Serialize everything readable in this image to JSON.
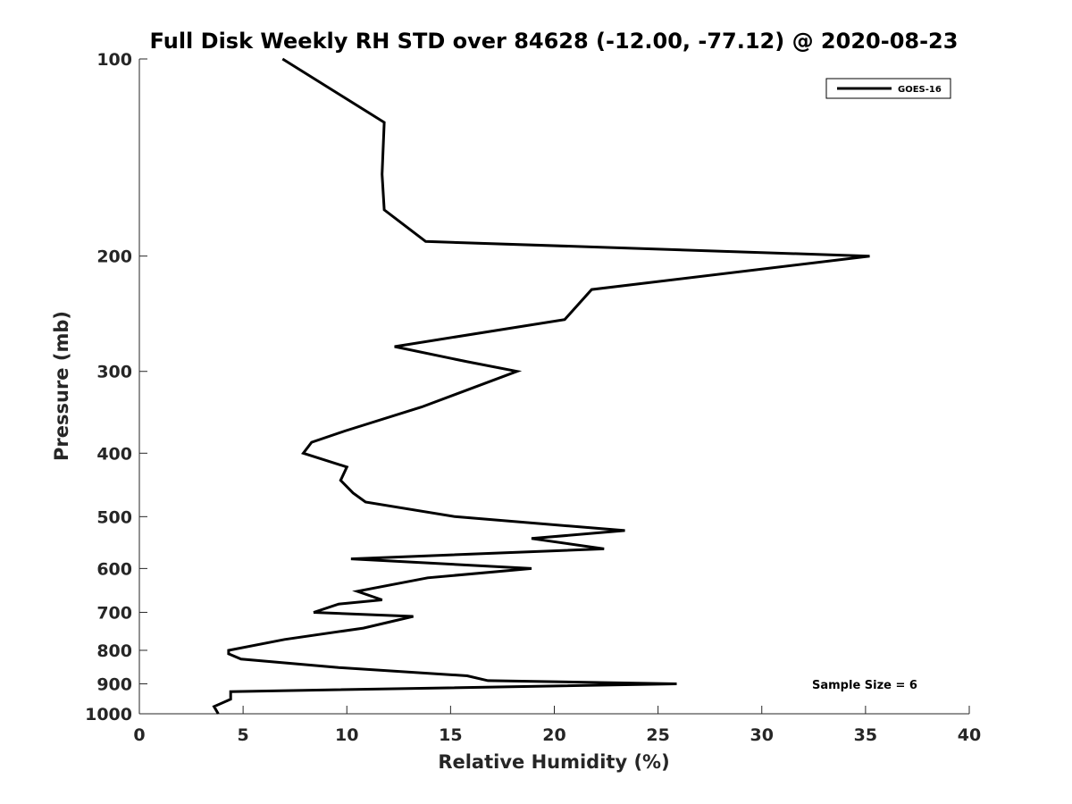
{
  "chart_data": {
    "type": "line",
    "title": "Full Disk Weekly RH STD over 84628 (-12.00, -77.12) @ 2020-08-23",
    "xlabel": "Relative Humidity (%)",
    "ylabel": "Pressure (mb)",
    "xlim": [
      0,
      40
    ],
    "ylim": [
      100,
      1000
    ],
    "y_scale": "log",
    "y_reversed": true,
    "x_ticks": [
      "0",
      "5",
      "10",
      "15",
      "20",
      "25",
      "30",
      "35",
      "40"
    ],
    "y_ticks": [
      "100",
      "200",
      "300",
      "400",
      "500",
      "600",
      "700",
      "800",
      "900",
      "1000"
    ],
    "grid": false,
    "legend_position": "top-right",
    "annotation": "Sample Size = 6",
    "series": [
      {
        "name": "GOES-16",
        "color": "#000000",
        "points": [
          [
            6.9,
            100
          ],
          [
            11.8,
            125
          ],
          [
            11.7,
            150
          ],
          [
            11.8,
            170
          ],
          [
            13.8,
            190
          ],
          [
            35.2,
            200
          ],
          [
            21.8,
            225
          ],
          [
            20.5,
            250
          ],
          [
            12.3,
            275
          ],
          [
            15.8,
            290
          ],
          [
            18.2,
            300
          ],
          [
            13.6,
            340
          ],
          [
            9.9,
            370
          ],
          [
            8.3,
            385
          ],
          [
            7.9,
            400
          ],
          [
            10.0,
            420
          ],
          [
            9.7,
            440
          ],
          [
            10.3,
            460
          ],
          [
            10.9,
            475
          ],
          [
            15.2,
            500
          ],
          [
            23.4,
            525
          ],
          [
            18.9,
            540
          ],
          [
            22.4,
            560
          ],
          [
            10.2,
            580
          ],
          [
            18.9,
            600
          ],
          [
            13.9,
            620
          ],
          [
            10.5,
            650
          ],
          [
            11.7,
            670
          ],
          [
            9.6,
            680
          ],
          [
            8.4,
            700
          ],
          [
            13.2,
            710
          ],
          [
            10.8,
            740
          ],
          [
            7.0,
            770
          ],
          [
            4.3,
            800
          ],
          [
            4.3,
            810
          ],
          [
            4.9,
            825
          ],
          [
            9.6,
            850
          ],
          [
            15.8,
            875
          ],
          [
            16.8,
            890
          ],
          [
            25.9,
            900
          ],
          [
            4.4,
            925
          ],
          [
            4.4,
            950
          ],
          [
            3.6,
            975
          ],
          [
            3.8,
            1000
          ]
        ]
      }
    ]
  }
}
